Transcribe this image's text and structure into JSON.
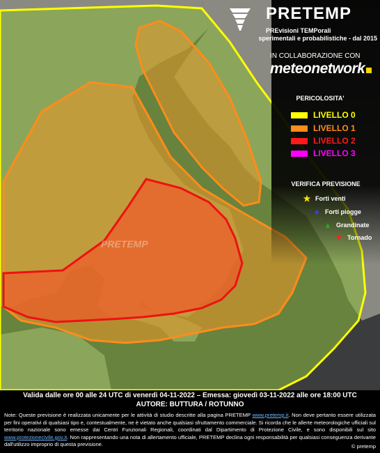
{
  "brand": {
    "title": "PRETEMP",
    "subtitle_line1": "PREvisioni TEMPorali",
    "subtitle_line2": "sperimentali e probabilistiche - dal 2015",
    "watermark": "PRETEMP"
  },
  "collaboration": {
    "label": "IN COLLABORAZIONE CON",
    "partner": "meteonetwork"
  },
  "legend": {
    "title": "PERICOLOSITA'",
    "levels": [
      {
        "label": "LIVELLO",
        "num": "0",
        "color": "#ffff00"
      },
      {
        "label": "LIVELLO",
        "num": "1",
        "color": "#ff8c1a"
      },
      {
        "label": "LIVELLO",
        "num": "2",
        "color": "#ff1a1a"
      },
      {
        "label": "LIVELLO",
        "num": "3",
        "color": "#ff00ff"
      }
    ]
  },
  "verifica": {
    "title": "VERIFICA PREVISIONE",
    "items": [
      {
        "label": "Forti venti",
        "icon": "star-icon",
        "color": "#ffe600"
      },
      {
        "label": "Forti piogge",
        "icon": "circle-icon",
        "color": "#3b3bff"
      },
      {
        "label": "Grandinate",
        "icon": "triangle-up-icon",
        "color": "#22aa22"
      },
      {
        "label": "Tornado",
        "icon": "triangle-down-icon",
        "color": "#ff2020"
      }
    ]
  },
  "footer": {
    "validity": "Valida dalle ore 00 alle 24 UTC di venerdì 04-11-2022 – Emessa: giovedì 03-11-2022 alle ore 18:00 UTC",
    "author": "AUTORE: BUTTURA / ROTUNNO",
    "note_a": "Note: Queste previsione è realizzata unicamente per le attività di studio descritte alla pagina PRETEMP ",
    "link1": "www.pretemp.it",
    "note_b": ". Non deve pertanto essere utilizzata per fini operativi di qualsiasi tipo e, contestualmente, ne è vietato anche qualsiasi sfruttamento commerciale. Si ricorda che le allerte meteorologiche ufficiali sul territorio nazionale sono emesse dai Centri Funzionali Regionali, coordinati dal Dipartimento di Protezione Civile, e sono disponibili sul sito ",
    "link2": "www.protezionecivile.gov.it",
    "note_c": ". Non rappresentando una nota di allertamento ufficiale, PRETEMP declina ogni responsabilità per qualsiasi conseguenza derivante dall'utilizzo improprio di questa previsione.",
    "copyright": "© pretemp"
  }
}
